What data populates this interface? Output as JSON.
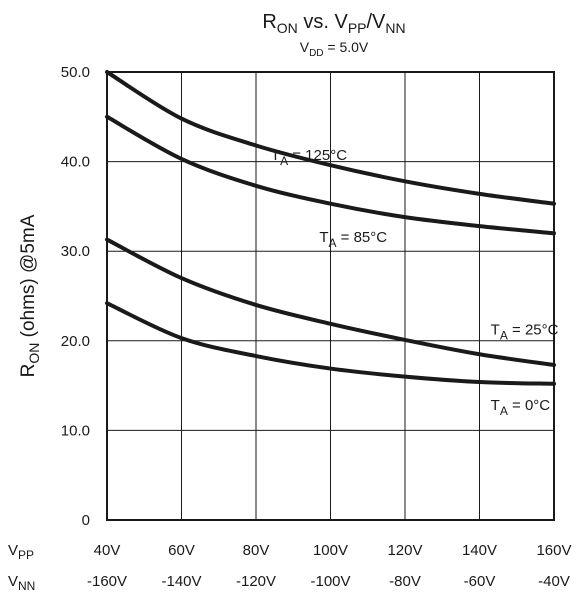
{
  "chart_data": {
    "type": "line",
    "title": {
      "base": "R",
      "sub1": "ON",
      "mid": " vs. V",
      "sub2": "PP",
      "slash": "/V",
      "sub3": "NN"
    },
    "subtitle": {
      "base": "V",
      "sub": "DD",
      "rest": " = 5.0V"
    },
    "ylabel": {
      "base": "R",
      "sub": "ON",
      "rest": " (ohms) @5mA"
    },
    "xlabel_rows": [
      {
        "base": "V",
        "sub": "PP",
        "ticks": [
          "40V",
          "60V",
          "80V",
          "100V",
          "120V",
          "140V",
          "160V"
        ]
      },
      {
        "base": "V",
        "sub": "NN",
        "ticks": [
          "-160V",
          "-140V",
          "-120V",
          "-100V",
          "-80V",
          "-60V",
          "-40V"
        ]
      }
    ],
    "x": [
      40,
      60,
      80,
      100,
      120,
      140,
      160
    ],
    "xlim": [
      40,
      160
    ],
    "ylim": [
      0,
      50
    ],
    "y_ticks": [
      "0",
      "10.0",
      "20.0",
      "30.0",
      "40.0",
      "50.0"
    ],
    "y_tick_values": [
      0,
      10,
      20,
      30,
      40,
      50
    ],
    "grid": true,
    "series": [
      {
        "name": "T_A = 125°C",
        "label": {
          "base": "T",
          "sub": "A",
          "rest": " = 125°C"
        },
        "label_anchor": [
          84,
          40.2
        ],
        "values": [
          50.0,
          44.8,
          41.8,
          39.6,
          37.8,
          36.4,
          35.3
        ]
      },
      {
        "name": "T_A = 85°C",
        "label": {
          "base": "T",
          "sub": "A",
          "rest": " = 85°C"
        },
        "label_anchor": [
          97,
          31.0
        ],
        "values": [
          45.0,
          40.3,
          37.3,
          35.3,
          33.8,
          32.8,
          32.0
        ]
      },
      {
        "name": "T_A = 25°C",
        "label": {
          "base": "T",
          "sub": "A",
          "rest": " = 25°C"
        },
        "label_anchor": [
          143,
          20.7
        ],
        "values": [
          31.3,
          27.0,
          24.0,
          21.9,
          20.1,
          18.5,
          17.3
        ]
      },
      {
        "name": "T_A = 0°C",
        "label": {
          "base": "T",
          "sub": "A",
          "rest": " = 0°C"
        },
        "label_anchor": [
          143,
          12.3
        ],
        "values": [
          24.2,
          20.3,
          18.3,
          16.9,
          16.0,
          15.4,
          15.2
        ]
      }
    ]
  }
}
